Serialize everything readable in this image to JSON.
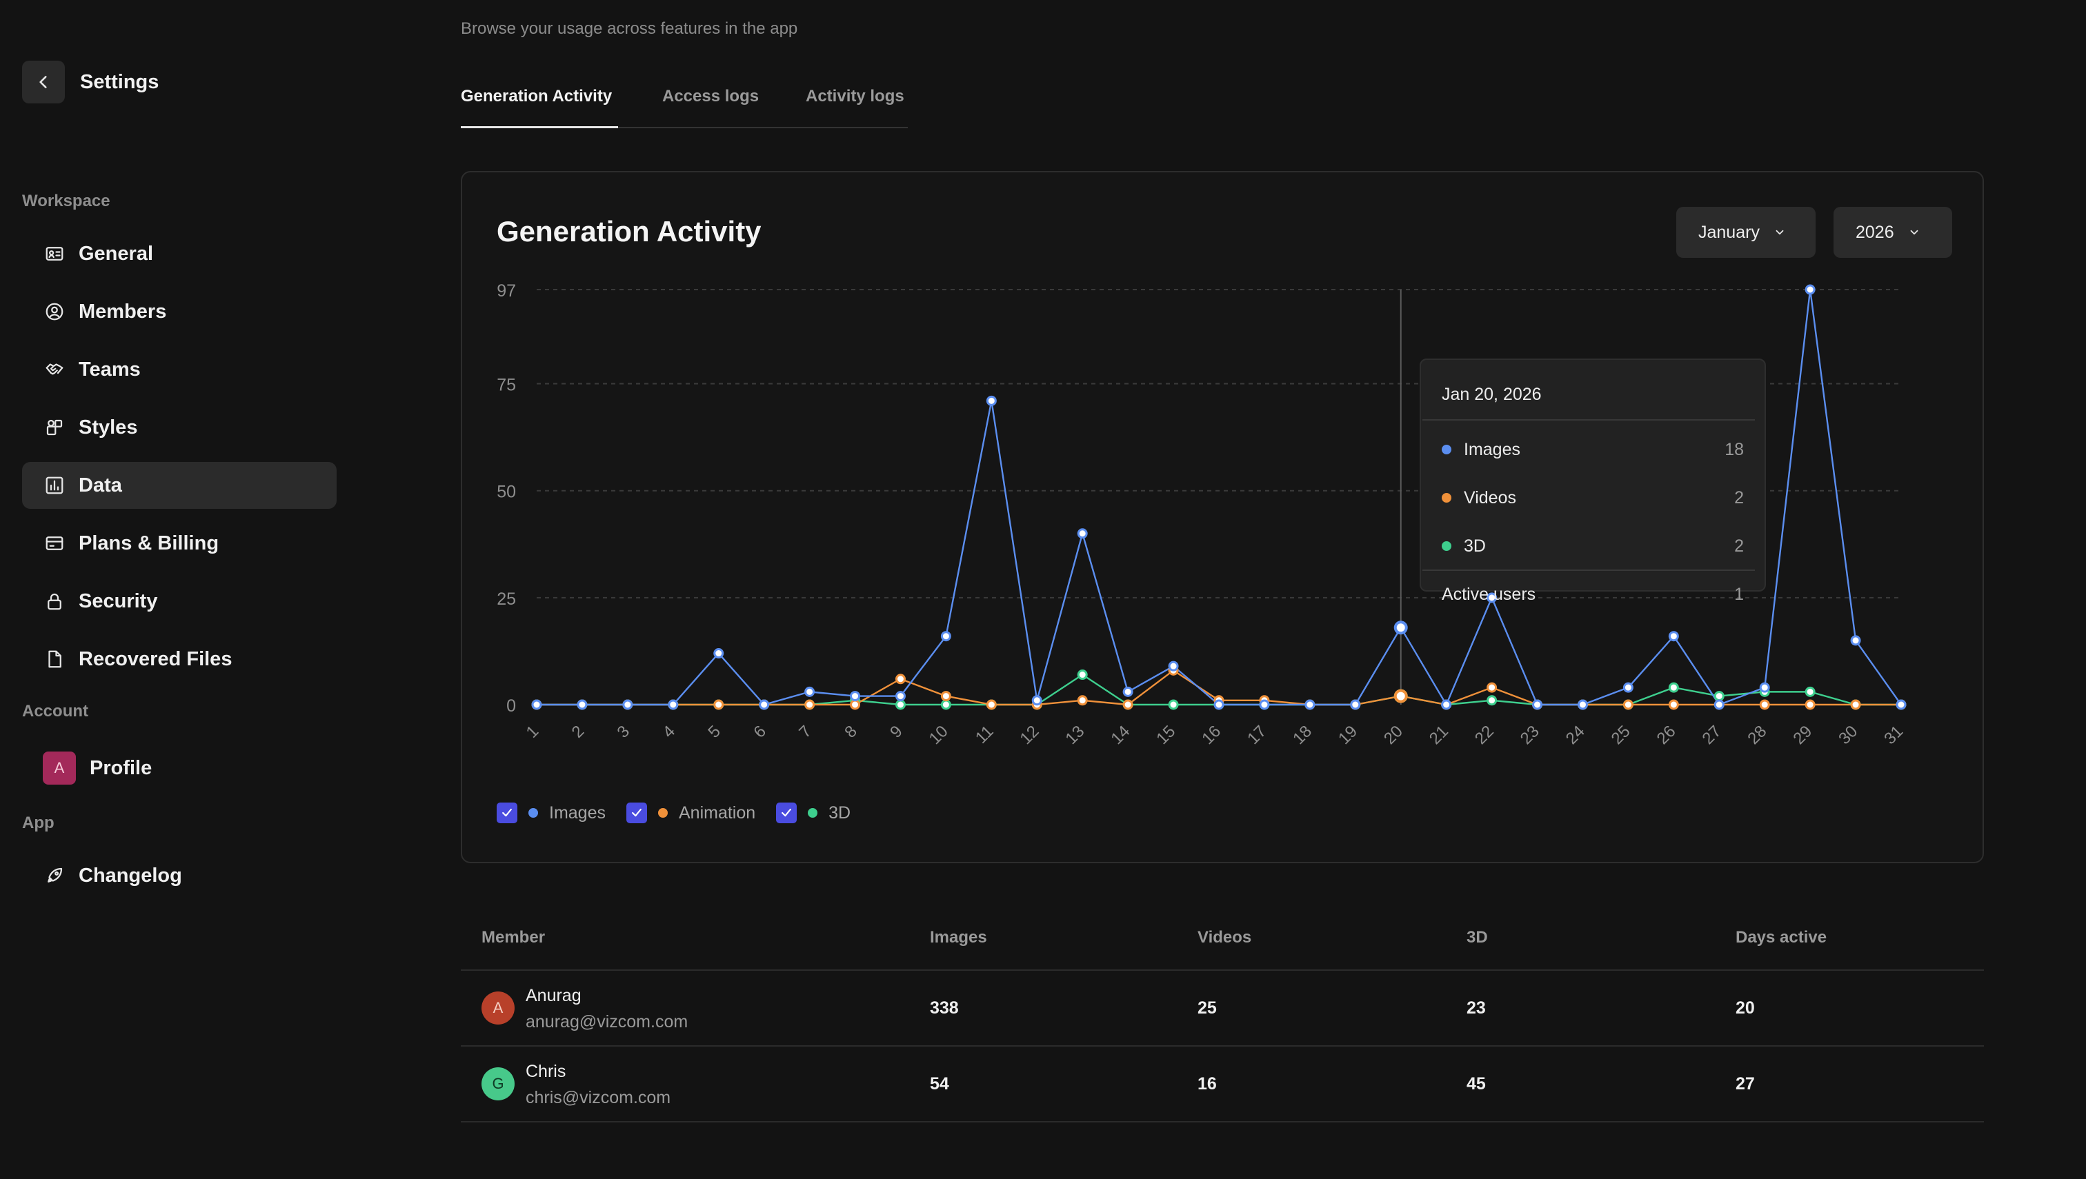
{
  "sidebar": {
    "title": "Settings",
    "sections": {
      "workspace": "Workspace",
      "account": "Account",
      "app": "App"
    },
    "items": [
      {
        "label": "General",
        "icon": "id-card-icon"
      },
      {
        "label": "Members",
        "icon": "user-circle-icon"
      },
      {
        "label": "Teams",
        "icon": "handshake-icon"
      },
      {
        "label": "Styles",
        "icon": "shapes-icon"
      },
      {
        "label": "Data",
        "icon": "bar-chart-icon",
        "active": true
      },
      {
        "label": "Plans & Billing",
        "icon": "credit-card-icon"
      },
      {
        "label": "Security",
        "icon": "lock-icon"
      },
      {
        "label": "Recovered Files",
        "icon": "file-icon"
      },
      {
        "label": "Profile",
        "icon": "avatar",
        "avatar_letter": "A"
      },
      {
        "label": "Changelog",
        "icon": "rocket-icon"
      }
    ]
  },
  "main": {
    "subtitle": "Browse your usage across features in the app",
    "tabs": [
      {
        "label": "Generation Activity",
        "active": true
      },
      {
        "label": "Access logs"
      },
      {
        "label": "Activity logs"
      }
    ],
    "card": {
      "title": "Generation Activity",
      "month_select": "January",
      "year_select": "2026"
    },
    "tooltip": {
      "date": "Jan 20, 2026",
      "rows": [
        {
          "label": "Images",
          "value": "18",
          "color": "#5b8ef0"
        },
        {
          "label": "Videos",
          "value": "2",
          "color": "#f0913a"
        },
        {
          "label": "3D",
          "value": "2",
          "color": "#3ecf8e"
        }
      ],
      "active_users_label": "Active users",
      "active_users_value": "1"
    },
    "legend": [
      {
        "label": "Images",
        "color": "#5b8ef0"
      },
      {
        "label": "Animation",
        "color": "#f0913a"
      },
      {
        "label": "3D",
        "color": "#3ecf8e"
      }
    ]
  },
  "chart_data": {
    "type": "line",
    "x": [
      1,
      2,
      3,
      4,
      5,
      6,
      7,
      8,
      9,
      10,
      11,
      12,
      13,
      14,
      15,
      16,
      17,
      18,
      19,
      20,
      21,
      22,
      23,
      24,
      25,
      26,
      27,
      28,
      29,
      30,
      31
    ],
    "y_ticks": [
      0,
      25,
      50,
      75,
      97
    ],
    "ylim": [
      0,
      97
    ],
    "grid": true,
    "legend_position": "bottom-left",
    "highlight_x": 20,
    "series": [
      {
        "name": "Images",
        "color": "#5b8ef0",
        "values": [
          0,
          0,
          0,
          0,
          12,
          0,
          3,
          2,
          2,
          16,
          71,
          1,
          40,
          3,
          9,
          0,
          0,
          0,
          0,
          18,
          0,
          25,
          0,
          0,
          4,
          16,
          0,
          4,
          97,
          15,
          0
        ]
      },
      {
        "name": "Animation",
        "color": "#f0913a",
        "values": [
          0,
          0,
          0,
          0,
          0,
          0,
          0,
          0,
          6,
          2,
          0,
          0,
          1,
          0,
          8,
          1,
          1,
          0,
          0,
          2,
          0,
          4,
          0,
          0,
          0,
          0,
          0,
          0,
          0,
          0,
          0
        ]
      },
      {
        "name": "3D",
        "color": "#3ecf8e",
        "values": [
          0,
          0,
          0,
          0,
          0,
          0,
          0,
          1,
          0,
          0,
          0,
          0,
          7,
          0,
          0,
          0,
          0,
          0,
          0,
          2,
          0,
          1,
          0,
          0,
          0,
          4,
          2,
          3,
          3,
          0,
          0
        ]
      }
    ]
  },
  "table": {
    "headers": [
      "Member",
      "Images",
      "Videos",
      "3D",
      "Days active"
    ],
    "rows": [
      {
        "name": "Anurag",
        "email": "anurag@vizcom.com",
        "avatar_letter": "A",
        "avatar_color": "#b8402a",
        "images": "338",
        "videos": "25",
        "threed": "23",
        "days_active": "20"
      },
      {
        "name": "Chris",
        "email": "chris@vizcom.com",
        "avatar_letter": "G",
        "avatar_color": "#47c98a",
        "images": "54",
        "videos": "16",
        "threed": "45",
        "days_active": "27"
      }
    ]
  }
}
